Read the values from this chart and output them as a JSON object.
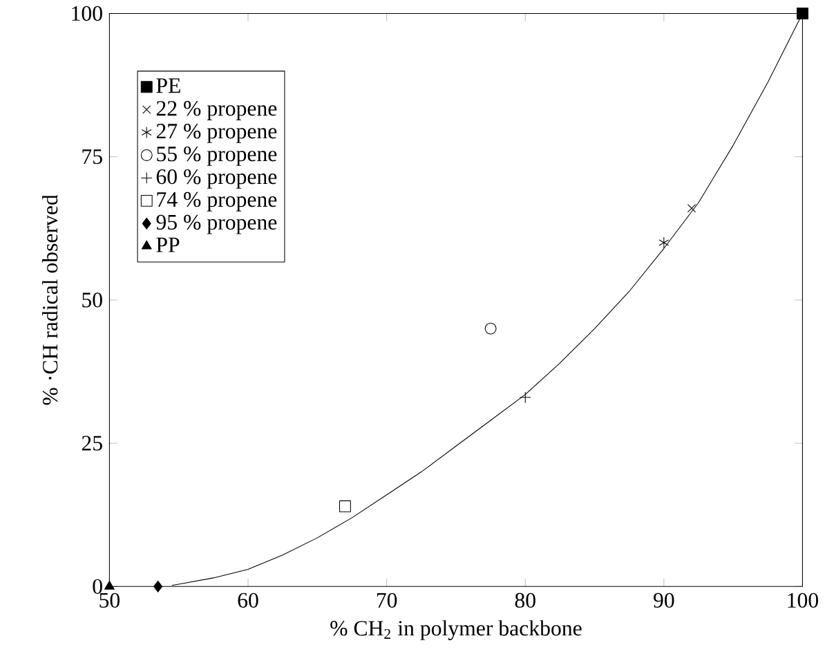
{
  "chart_data": {
    "type": "scatter",
    "xlabel": "% CH$_{2}$ in polymer backbone",
    "ylabel": "% ·CH radical observed",
    "xlim": [
      50,
      100
    ],
    "ylim": [
      0,
      100
    ],
    "xticks": [
      50,
      60,
      70,
      80,
      90,
      100
    ],
    "yticks": [
      0,
      25,
      50,
      75,
      100
    ],
    "grid": false,
    "legend": "top left",
    "series": [
      {
        "name": "PE",
        "color": "#000000",
        "marker": "square",
        "x": [
          100
        ],
        "values": [
          100
        ]
      },
      {
        "name": "22 % propene",
        "color": "#000000",
        "marker": "cross",
        "x": [
          92
        ],
        "values": [
          66
        ]
      },
      {
        "name": "27 % propene",
        "color": "#000000",
        "x": [
          90
        ],
        "values": [
          60
        ]
      },
      {
        "name": "55 % propene",
        "color": "#000000",
        "marker": "circle",
        "x": [
          77.5
        ],
        "values": [
          45
        ]
      },
      {
        "name": "60 % propene",
        "color": "#000000",
        "marker": "plus",
        "x": [
          80
        ],
        "values": [
          33
        ]
      },
      {
        "name": "74 % propene",
        "color": "#000000",
        "x": [
          67
        ],
        "values": [
          14
        ]
      },
      {
        "name": "95 % propene",
        "color": "#000000",
        "marker": "diamond",
        "x": [
          53.5
        ],
        "values": [
          0
        ]
      },
      {
        "name": "PP",
        "color": "#000000",
        "marker": "triangle",
        "x": [
          50
        ],
        "values": [
          0
        ]
      },
      {
        "type": "line",
        "color": "#000000",
        "marker": "none",
        "line_style": "solid",
        "x": [
          54.5,
          55,
          57.5,
          60,
          62.5,
          65,
          67.5,
          70,
          72.5,
          75,
          77.5,
          80,
          82.5,
          85,
          87.5,
          90,
          92.5,
          95,
          97.5,
          100
        ],
        "values": [
          0.2,
          0.4,
          1.5,
          3,
          5.5,
          8.5,
          12,
          16,
          20,
          24.5,
          29,
          33.5,
          39,
          45,
          51.5,
          59,
          67,
          77,
          88,
          100
        ]
      }
    ]
  }
}
